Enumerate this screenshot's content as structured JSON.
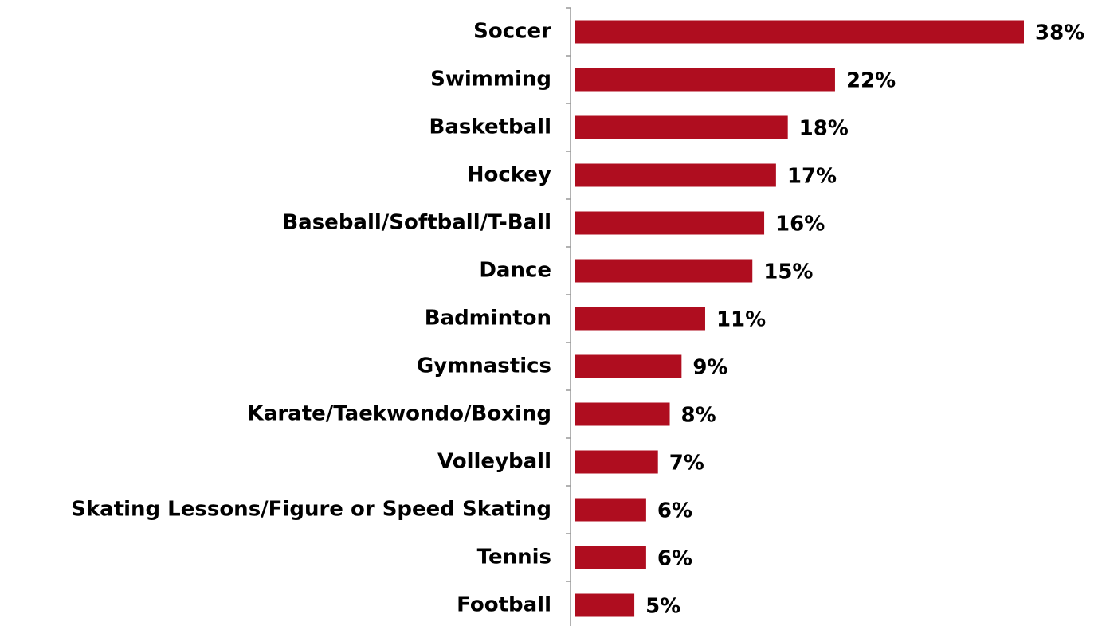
{
  "chart_data": {
    "type": "bar",
    "orientation": "horizontal",
    "categories": [
      "Soccer",
      "Swimming",
      "Basketball",
      "Hockey",
      "Baseball/Softball/T-Ball",
      "Dance",
      "Badminton",
      "Gymnastics",
      "Karate/Taekwondo/Boxing",
      "Volleyball",
      "Skating Lessons/Figure or Speed Skating",
      "Tennis",
      "Football"
    ],
    "values": [
      38,
      22,
      18,
      17,
      16,
      15,
      11,
      9,
      8,
      7,
      6,
      6,
      5
    ],
    "value_labels": [
      "38%",
      "22%",
      "18%",
      "17%",
      "16%",
      "15%",
      "11%",
      "9%",
      "8%",
      "7%",
      "6%",
      "6%",
      "5%"
    ],
    "color": "#af0d1f"
  }
}
